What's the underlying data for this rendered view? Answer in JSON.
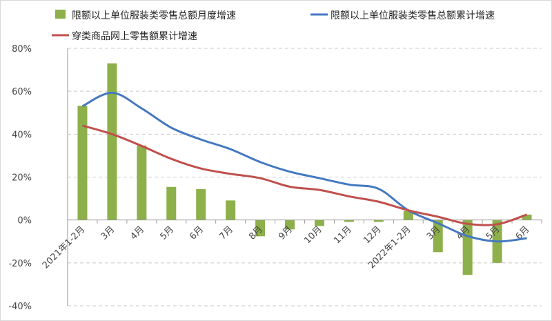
{
  "chart_data": {
    "type": "bar+line",
    "categories": [
      "2021年1-2月",
      "3月",
      "4月",
      "5月",
      "6月",
      "7月",
      "8月",
      "9月",
      "10月",
      "11月",
      "12月",
      "2022年1-2月",
      "3月",
      "4月",
      "5月",
      "6月"
    ],
    "series": [
      {
        "name": "限额以上单位服装类零售总额月度增速",
        "type": "bar",
        "color": "#8db04a",
        "values": [
          53.2,
          73,
          34.7,
          15.4,
          14.4,
          9.1,
          -7.6,
          -4.4,
          -2.8,
          -0.9,
          -0.9,
          4.2,
          -15,
          -25.6,
          -20,
          2.5
        ]
      },
      {
        "name": "限额以上单位服装类零售总额累计增速",
        "type": "line",
        "color": "#4478c0",
        "values": [
          53,
          59.3,
          52,
          43,
          37.5,
          33,
          27,
          22.5,
          19.5,
          16.5,
          14.5,
          4.5,
          -1.5,
          -7.5,
          -10,
          -8.5
        ]
      },
      {
        "name": "穿类商品网上零售额累计增速",
        "type": "line",
        "color": "#c0504d",
        "values": [
          44,
          40,
          34.5,
          28.5,
          24,
          21.5,
          19.5,
          15.5,
          14,
          11,
          8.5,
          4.5,
          1.5,
          -1.8,
          -2,
          2.5
        ]
      }
    ],
    "ylim": [
      -40,
      80
    ],
    "yticks": [
      "-40%",
      "-20%",
      "0%",
      "20%",
      "40%",
      "60%",
      "80%"
    ],
    "grid": true,
    "legend": "top"
  }
}
